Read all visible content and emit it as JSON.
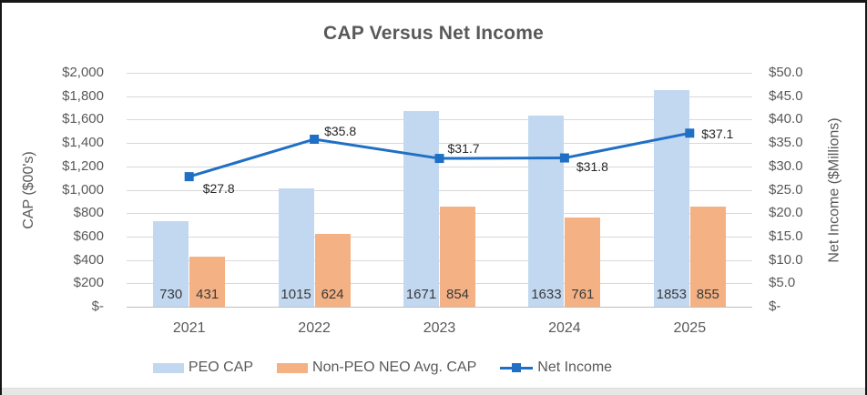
{
  "chart_data": {
    "type": "combo-bar-line",
    "title": "CAP Versus Net Income",
    "categories": [
      "2021",
      "2022",
      "2023",
      "2024",
      "2025"
    ],
    "series": [
      {
        "name": "PEO CAP",
        "type": "bar",
        "axis": "left",
        "color": "#c2d8f0",
        "values": [
          730,
          1015,
          1671,
          1633,
          1853
        ],
        "labels": [
          "730",
          "1015",
          "1671",
          "1633",
          "1853"
        ]
      },
      {
        "name": "Non-PEO NEO Avg. CAP",
        "type": "bar",
        "axis": "left",
        "color": "#f4b183",
        "values": [
          431,
          624,
          854,
          761,
          855
        ],
        "labels": [
          "431",
          "624",
          "854",
          "761",
          "855"
        ]
      },
      {
        "name": "Net Income",
        "type": "line",
        "axis": "right",
        "color": "#1f6fc4",
        "values": [
          27.8,
          35.8,
          31.7,
          31.8,
          37.1
        ],
        "labels": [
          "$27.8",
          "$35.8",
          "$31.7",
          "$31.8",
          "$37.1"
        ]
      }
    ],
    "left_axis": {
      "title": "CAP ($00's)",
      "min": 0,
      "max": 2000,
      "step": 200,
      "ticks": [
        "$2,000",
        "$1,800",
        "$1,600",
        "$1,400",
        "$1,200",
        "$1,000",
        "$800",
        "$600",
        "$400",
        "$200",
        "$-"
      ]
    },
    "right_axis": {
      "title": "Net Income ($Millions)",
      "min": 0,
      "max": 50,
      "step": 5,
      "ticks": [
        "$50.0",
        "$45.0",
        "$40.0",
        "$35.0",
        "$30.0",
        "$25.0",
        "$20.0",
        "$15.0",
        "$10.0",
        "$5.0",
        "$-"
      ]
    },
    "grid": true,
    "legend_position": "bottom"
  }
}
